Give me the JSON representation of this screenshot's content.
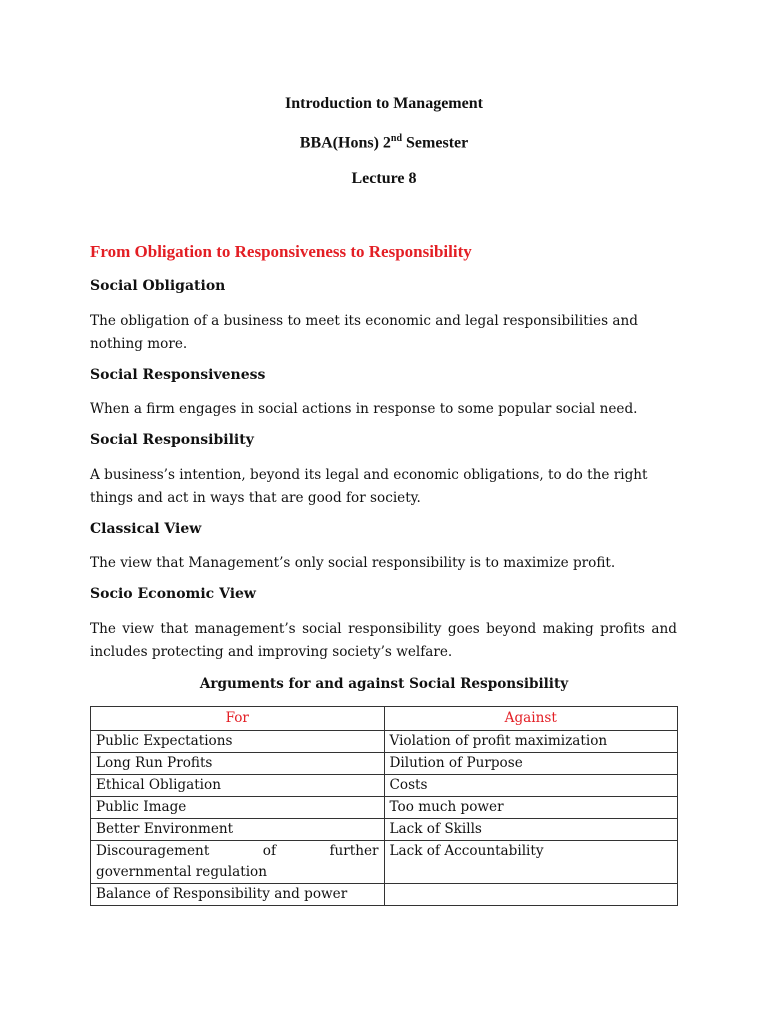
{
  "header": {
    "course": "Introduction to Management",
    "program_pre": "BBA(Hons) 2",
    "program_sup": "nd",
    "program_post": " Semester",
    "lecture": "Lecture 8"
  },
  "section_title": "From Obligation to Responsiveness to Responsibility",
  "definitions": [
    {
      "term": "Social Obligation",
      "text": "The obligation of a business to meet its economic and legal responsibilities and nothing more."
    },
    {
      "term": "Social Responsiveness",
      "text": "When a firm engages in social actions in response to some popular social need."
    },
    {
      "term": "Social Responsibility",
      "text": "A business’s intention, beyond its legal and economic obligations, to do the right things and act in ways that are good for society."
    },
    {
      "term": "Classical View",
      "text": "The view that Management’s only social responsibility is to maximize profit."
    },
    {
      "term": "Socio Economic View",
      "text": "The view that management’s social responsibility goes beyond making profits and includes protecting and improving society’s welfare."
    }
  ],
  "table": {
    "caption": "Arguments for and against Social Responsibility",
    "headers": [
      "For",
      "Against"
    ],
    "rows": [
      [
        "Public Expectations",
        "Violation of profit maximization"
      ],
      [
        "Long Run Profits",
        "Dilution of Purpose"
      ],
      [
        "Ethical Obligation",
        "Costs"
      ],
      [
        "Public Image",
        "Too much power"
      ],
      [
        "Better Environment",
        "Lack of Skills"
      ],
      [
        "Discouragement of further governmental regulation",
        "Lack of Accountability"
      ],
      [
        "Balance of Responsibility and power",
        ""
      ]
    ]
  },
  "colors": {
    "accent": "#e31e24",
    "text": "#111111"
  }
}
